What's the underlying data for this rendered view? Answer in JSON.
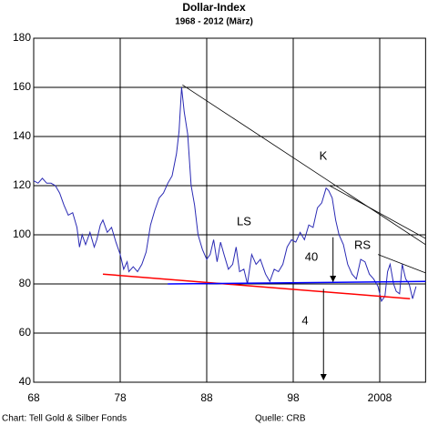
{
  "chart_data": {
    "type": "line",
    "title": "Dollar-Index",
    "subtitle": "1968  -  2012 (März)",
    "footer_left": "Chart: Tell Gold & Silber Fonds",
    "footer_right": "Quelle: CRB",
    "xlim": [
      1968,
      2013.3
    ],
    "ylim": [
      40,
      180
    ],
    "xticks": [
      {
        "value": 1968,
        "label": "68"
      },
      {
        "value": 1978,
        "label": "78"
      },
      {
        "value": 1988,
        "label": "88"
      },
      {
        "value": 1998,
        "label": "98"
      },
      2008
    ],
    "yticks": [
      40,
      60,
      80,
      100,
      120,
      140,
      160,
      180
    ],
    "grid": true,
    "series": [
      {
        "color": "#2a2ab4",
        "x": [
          1968,
          1968.5,
          1969,
          1969.5,
          1970,
          1970.5,
          1971,
          1971.5,
          1972,
          1972.5,
          1973,
          1973.3,
          1973.6,
          1974,
          1974.5,
          1975,
          1975.3,
          1975.7,
          1976,
          1976.5,
          1977,
          1977.5,
          1978,
          1978.4,
          1978.8,
          1979,
          1979.5,
          1980,
          1980.5,
          1981,
          1981.5,
          1982,
          1982.5,
          1983,
          1983.5,
          1984,
          1984.5,
          1984.8,
          1985.1,
          1985.4,
          1985.8,
          1986.2,
          1986.6,
          1987,
          1987.5,
          1988,
          1988.4,
          1988.8,
          1989.2,
          1989.6,
          1990,
          1990.5,
          1991,
          1991.4,
          1991.8,
          1992.3,
          1992.7,
          1993.2,
          1993.7,
          1994.2,
          1994.8,
          1995.3,
          1995.8,
          1996.3,
          1996.8,
          1997.3,
          1997.8,
          1998.3,
          1998.8,
          1999.3,
          1999.8,
          2000.3,
          2000.8,
          2001.3,
          2001.8,
          2002.1,
          2002.5,
          2002.9,
          2003.3,
          2003.8,
          2004.3,
          2004.8,
          2005.3,
          2005.8,
          2006.3,
          2006.8,
          2007.3,
          2007.8,
          2008.2,
          2008.6,
          2008.9,
          2009.2,
          2009.6,
          2009.9,
          2010.3,
          2010.6,
          2011,
          2011.4,
          2011.8,
          2012.2
        ],
        "values": [
          122,
          121,
          123,
          121,
          121,
          120,
          117,
          112,
          108,
          109,
          103,
          95,
          100,
          96,
          101,
          95,
          98,
          104,
          106,
          101,
          103,
          97,
          92,
          86,
          89,
          85,
          87,
          85,
          88,
          93,
          104,
          110,
          115,
          117,
          121,
          124,
          133,
          142,
          160,
          150,
          141,
          120,
          112,
          100,
          94,
          90,
          92,
          98,
          89,
          97,
          92,
          86,
          88,
          95,
          85,
          86,
          80,
          92,
          88,
          90,
          84,
          81,
          86,
          85,
          88,
          95,
          98,
          97,
          101,
          98,
          104,
          103,
          111,
          113,
          119,
          118,
          115,
          106,
          100,
          96,
          88,
          84,
          82,
          90,
          89,
          84,
          82,
          79,
          73,
          75,
          85,
          88,
          80,
          77,
          76,
          88,
          82,
          80,
          74,
          79
        ]
      }
    ],
    "trend_lines": [
      {
        "color": "#000000",
        "x": [
          1985.2,
          2013.3
        ],
        "y": [
          161,
          96
        ]
      },
      {
        "color": "#000000",
        "x": [
          2002.2,
          2013.3
        ],
        "y": [
          120,
          98.5
        ]
      },
      {
        "color": "#000000",
        "x": [
          2007.8,
          2013.3
        ],
        "y": [
          92,
          84.5
        ]
      },
      {
        "color": "#ff0000",
        "x": [
          1976,
          2011.5
        ],
        "y": [
          84,
          74
        ]
      },
      {
        "color": "#0000ff",
        "x": [
          1983.5,
          2013.3
        ],
        "y": [
          80,
          81
        ]
      }
    ],
    "arrows": [
      {
        "x": [
          2002.6,
          2002.6
        ],
        "y": [
          99,
          81
        ]
      },
      {
        "x": [
          2001.5,
          2001.5
        ],
        "y": [
          78,
          41
        ]
      }
    ],
    "annotations": [
      "K",
      "LS",
      "RS",
      "40",
      "4"
    ]
  }
}
